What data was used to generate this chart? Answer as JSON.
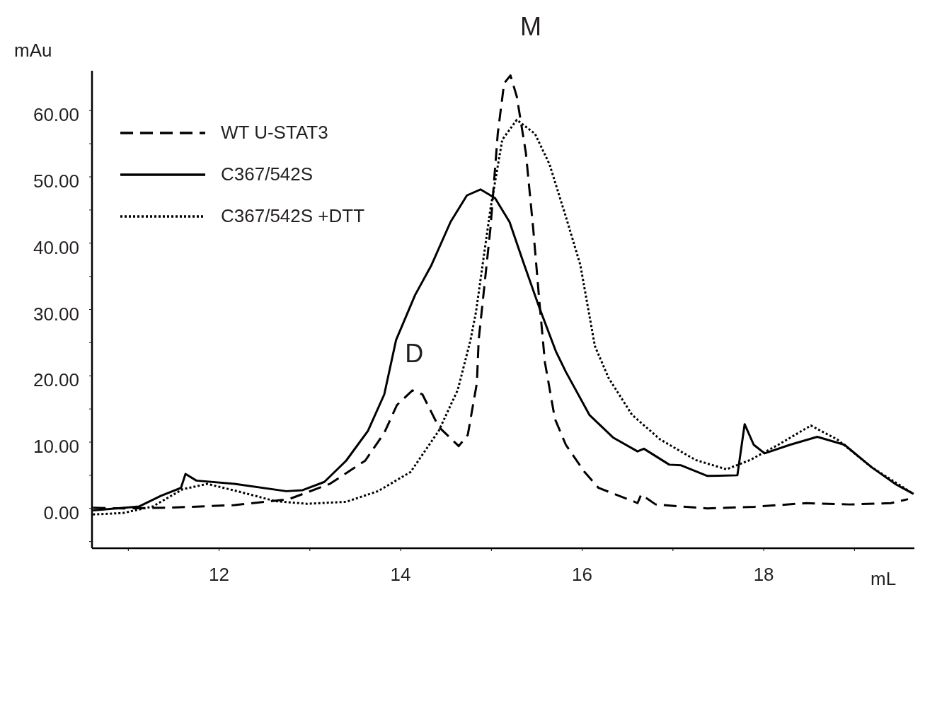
{
  "chart_data": {
    "type": "line",
    "xlabel": "mL",
    "ylabel": "mAu",
    "legend": "top left",
    "xlim": [
      10.6,
      19.66
    ],
    "ylim": [
      -6,
      66
    ],
    "xticks": [
      {
        "value": 11,
        "label": null
      },
      12,
      {
        "value": 13,
        "label": null
      },
      14,
      {
        "value": 15,
        "label": null
      },
      16,
      {
        "value": 17,
        "label": null
      },
      18,
      {
        "value": 19,
        "label": null
      }
    ],
    "yticks": [
      {
        "value": -5,
        "label": null
      },
      {
        "value": 0,
        "label": "0.00"
      },
      {
        "value": 5,
        "label": null
      },
      {
        "value": 10,
        "label": "10.00"
      },
      {
        "value": 15,
        "label": null
      },
      {
        "value": 20,
        "label": "20.00"
      },
      {
        "value": 25,
        "label": null
      },
      {
        "value": 30,
        "label": "30.00"
      },
      {
        "value": 35,
        "label": null
      },
      {
        "value": 40,
        "label": "40.00"
      },
      {
        "value": 45,
        "label": null
      },
      {
        "value": 50,
        "label": "50.00"
      },
      {
        "value": 55,
        "label": null
      },
      {
        "value": 60,
        "label": "60.00"
      }
    ],
    "annotations": [
      "M",
      {
        "text": "D",
        "x": 14.15,
        "y": 17.8
      }
    ],
    "series": [
      {
        "name": "WT U-STAT3",
        "color": "#000000",
        "line_style": "dashed",
        "x": [
          10.61,
          10.94,
          11.42,
          12.17,
          12.77,
          13.22,
          13.61,
          13.82,
          13.96,
          14.13,
          14.24,
          14.42,
          14.64,
          14.74,
          14.84,
          14.86,
          14.99,
          15.07,
          15.14,
          15.21,
          15.28,
          15.38,
          15.46,
          15.53,
          15.59,
          15.7,
          15.82,
          16.02,
          16.18,
          16.56,
          16.61,
          16.65,
          16.81,
          17.38,
          17.9,
          18.47,
          18.94,
          19.4,
          19.59
        ],
        "values": [
          0.1,
          0,
          0.1,
          0.5,
          1.4,
          3.7,
          7.2,
          11.4,
          15.6,
          17.8,
          17.2,
          12.3,
          9.4,
          11.1,
          18.9,
          25.4,
          42.3,
          56.5,
          64.1,
          65.3,
          62.1,
          53.6,
          42.3,
          31,
          22,
          13.5,
          9.6,
          5.6,
          3.1,
          1.1,
          0.8,
          2.1,
          0.6,
          0,
          0.25,
          0.8,
          0.6,
          0.8,
          1.4
        ]
      },
      {
        "name": "C367/542S",
        "color": "#000000",
        "line_style": "solid",
        "x": [
          10.61,
          11.12,
          11.36,
          11.58,
          11.63,
          11.75,
          12.17,
          12.74,
          12.92,
          13.16,
          13.4,
          13.64,
          13.82,
          13.95,
          14.16,
          14.34,
          14.55,
          14.73,
          14.88,
          15.04,
          15.2,
          15.35,
          15.53,
          15.71,
          15.82,
          16.08,
          16.34,
          16.61,
          16.68,
          16.96,
          17.09,
          17.38,
          17.71,
          17.79,
          17.89,
          18.01,
          18.29,
          18.59,
          18.89,
          19.19,
          19.46,
          19.65
        ],
        "values": [
          -0.3,
          0.3,
          1.9,
          3.1,
          5.2,
          4.2,
          3.7,
          2.6,
          2.75,
          4,
          7.2,
          11.7,
          17.2,
          25.4,
          32.2,
          36.7,
          43.2,
          47.2,
          48.1,
          46.8,
          43.2,
          37.2,
          30.2,
          23.7,
          20.6,
          14.1,
          10.7,
          8.6,
          9,
          6.6,
          6.5,
          4.9,
          5,
          12.7,
          9.6,
          8.3,
          9.6,
          10.8,
          9.6,
          6.2,
          3.6,
          2.2
        ]
      },
      {
        "name": "C367/542S +DTT",
        "color": "#000000",
        "line_style": "dotted",
        "x": [
          10.61,
          10.94,
          11.27,
          11.6,
          11.87,
          12.2,
          12.62,
          12.97,
          13.4,
          13.75,
          14.11,
          14.42,
          14.63,
          14.77,
          14.83,
          14.99,
          15.12,
          15.28,
          15.48,
          15.64,
          15.82,
          15.98,
          16.14,
          16.29,
          16.55,
          16.86,
          17.25,
          17.59,
          17.85,
          18.16,
          18.52,
          18.81,
          19.19,
          19.65
        ],
        "values": [
          -0.9,
          -0.7,
          0.3,
          2.9,
          3.7,
          2.6,
          1.1,
          0.7,
          1,
          2.6,
          5.5,
          11.7,
          17.9,
          25.4,
          29.6,
          45.2,
          55.6,
          58.6,
          56.5,
          51.9,
          44,
          36.7,
          24.5,
          19.7,
          14.1,
          10.4,
          7.3,
          5.9,
          7.3,
          9.6,
          12.5,
          10.4,
          6.2,
          2.2
        ]
      }
    ]
  }
}
